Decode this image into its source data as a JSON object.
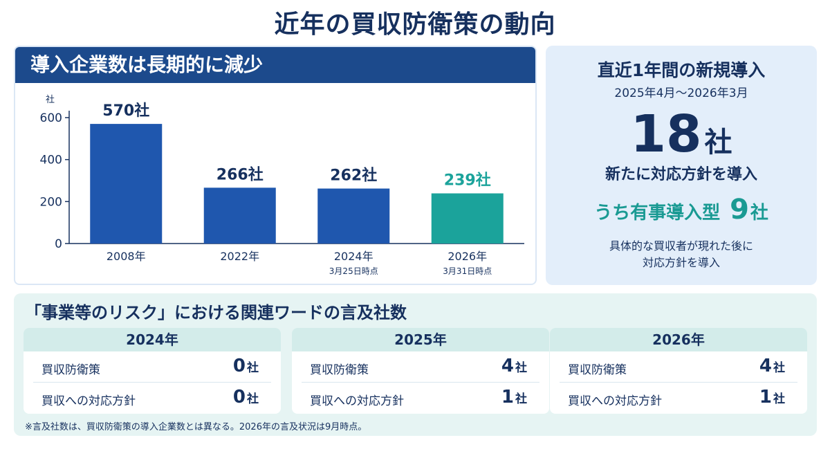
{
  "page": {
    "title": "近年の買収防衛策の動向"
  },
  "chart_panel": {
    "header": "導入企業数は長期的に減少"
  },
  "chart_data": {
    "type": "bar",
    "title": "導入企業数は長期的に減少",
    "ylabel": "社",
    "ylim": [
      0,
      600
    ],
    "yticks": [
      0,
      200,
      400,
      600
    ],
    "categories": [
      "2008年",
      "2022年",
      "2024年",
      "2026年"
    ],
    "sublabels": [
      "",
      "",
      "3月25日時点",
      "3月31日時点"
    ],
    "values": [
      570,
      266,
      262,
      239
    ],
    "value_labels": [
      "570社",
      "266社",
      "262社",
      "239社"
    ],
    "colors": [
      "#1f57ae",
      "#1f57ae",
      "#1f57ae",
      "#1ba39b"
    ],
    "grid": false
  },
  "right_panel": {
    "title": "直近1年間の新規導入",
    "period": "2025年4月〜2026年3月",
    "big_number": "18",
    "big_unit": "社",
    "description": "新たに対応方針を導入",
    "sub_label": "うち有事導入型",
    "sub_number": "9",
    "sub_unit": "社",
    "note_line1": "具体的な買収者が現れた後に",
    "note_line2": "対応方針を導入"
  },
  "mentions": {
    "title": "「事業等のリスク」における関連ワードの言及社数",
    "years": [
      {
        "year": "2024年",
        "rows": [
          {
            "label": "買収防衛策",
            "value": "0",
            "unit": "社"
          },
          {
            "label": "買収への対応方針",
            "value": "0",
            "unit": "社"
          }
        ]
      },
      {
        "year": "2025年",
        "rows": [
          {
            "label": "買収防衛策",
            "value": "4",
            "unit": "社"
          },
          {
            "label": "買収への対応方針",
            "value": "1",
            "unit": "社"
          }
        ]
      },
      {
        "year": "2026年",
        "rows": [
          {
            "label": "買収防衛策",
            "value": "4",
            "unit": "社"
          },
          {
            "label": "買収への対応方針",
            "value": "1",
            "unit": "社"
          }
        ]
      }
    ],
    "footnote": "※言及社数は、買収防衛策の導入企業数とは異なる。2026年の言及状況は9月時点。"
  },
  "colors": {
    "navy": "#16305e",
    "bar_blue": "#1f57ae",
    "bar_teal": "#1ba39b",
    "header_bg": "#1c4a8c",
    "accent_teal": "#1a9a93"
  }
}
